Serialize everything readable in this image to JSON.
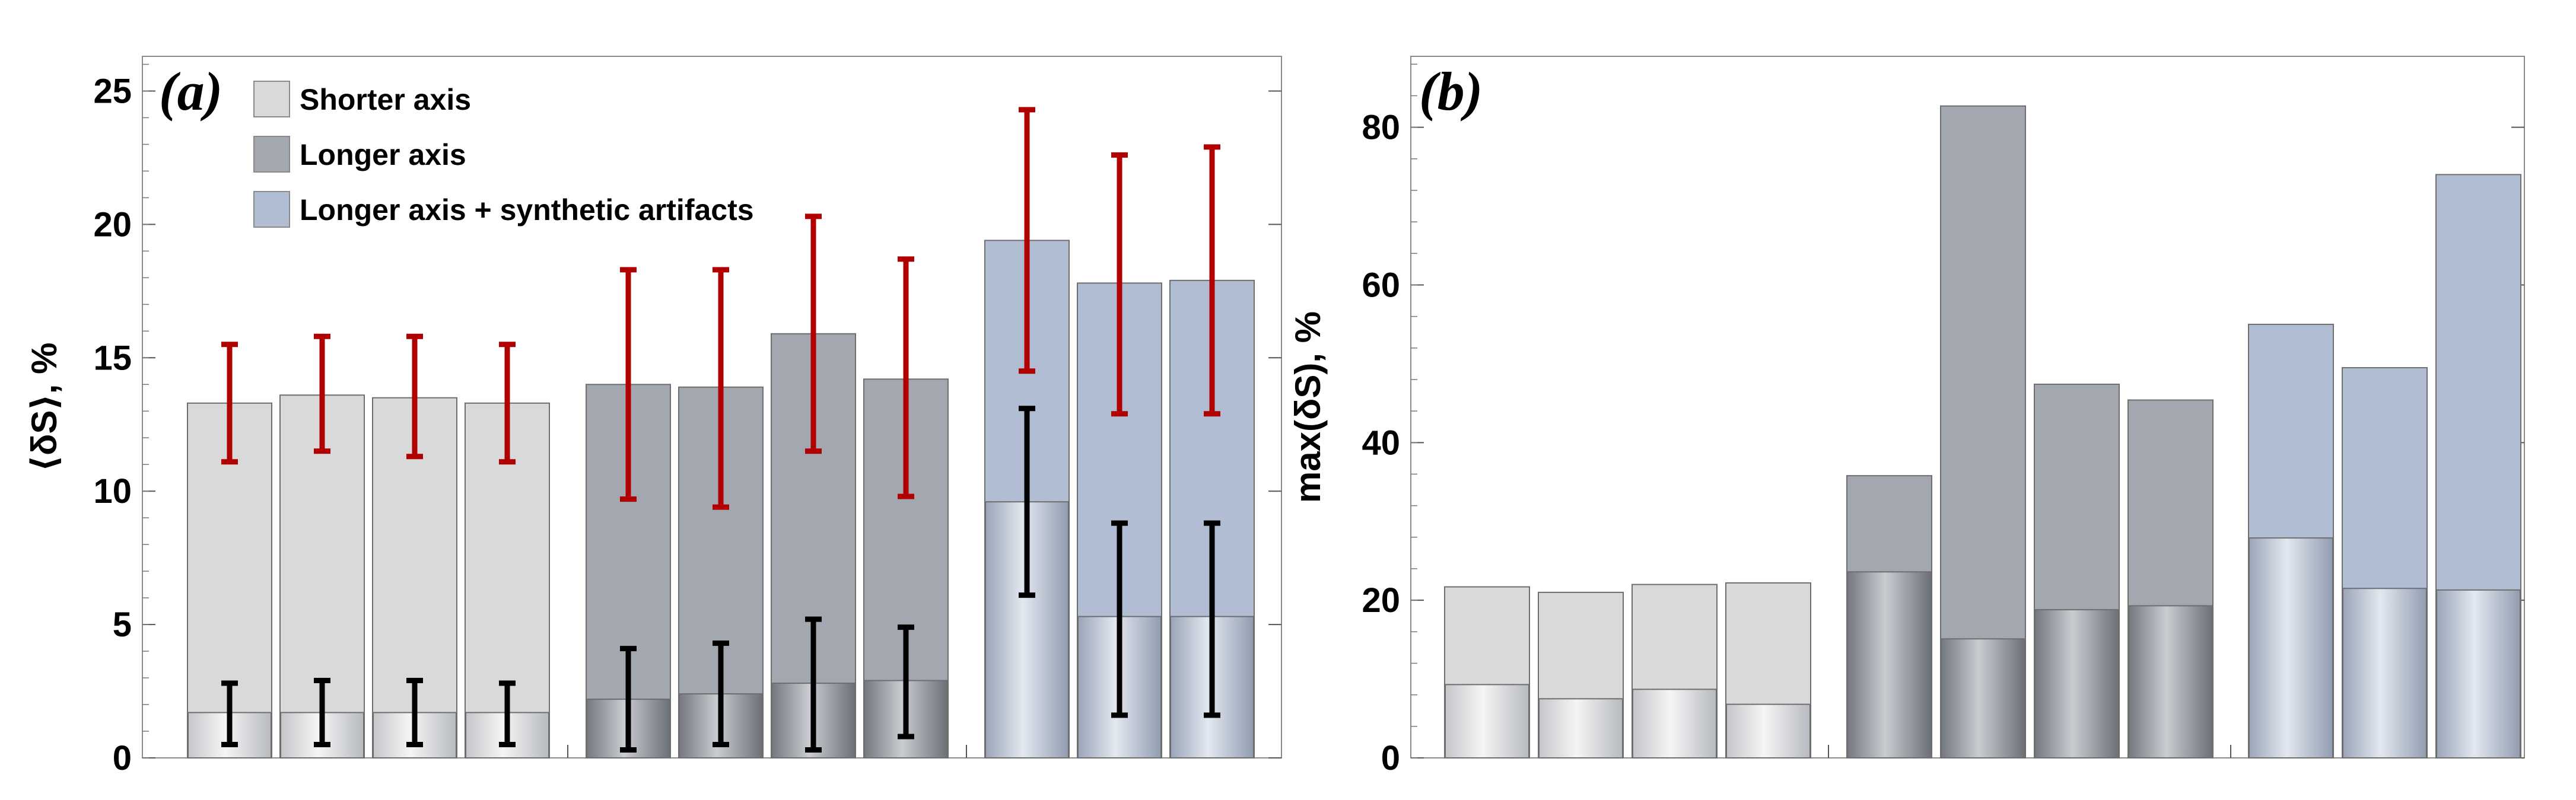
{
  "colors": {
    "shorter": "#d9d9d9",
    "longer": "#a3a7af",
    "synthetic": "#b1bdd3",
    "inner_light": "#d3d6da",
    "inner_mid": "#8f939b",
    "inner_synth": "#b6bfcd",
    "err_outer": "#b00000",
    "err_inner": "#000000",
    "frame": "#8a8a8a"
  },
  "legend": {
    "items": [
      {
        "label": "Shorter axis",
        "color": "#d9d9d9"
      },
      {
        "label": "Longer axis",
        "color": "#a3a7af"
      },
      {
        "label": "Longer axis + synthetic artifacts",
        "color": "#b1bdd3"
      }
    ]
  },
  "chart_data": [
    {
      "type": "bar",
      "panel_label": "(a)",
      "ylabel": "⟨δS⟩, %",
      "ylim": [
        0,
        26.3
      ],
      "yticks": [
        0,
        5,
        10,
        15,
        20,
        25
      ],
      "grid": false,
      "legend_position": "top-left",
      "groups": [
        {
          "name": "Shorter axis",
          "values": [
            13.3,
            13.6,
            13.5,
            13.3
          ],
          "errors": [
            [
              11.1,
              15.5
            ],
            [
              11.5,
              15.8
            ],
            [
              11.3,
              15.8
            ],
            [
              11.1,
              15.5
            ]
          ],
          "inner_values": [
            1.7,
            1.7,
            1.7,
            1.7
          ],
          "inner_errors": [
            [
              0.5,
              2.8
            ],
            [
              0.5,
              2.9
            ],
            [
              0.5,
              2.9
            ],
            [
              0.5,
              2.8
            ]
          ]
        },
        {
          "name": "Longer axis",
          "values": [
            14.0,
            13.9,
            15.9,
            14.2
          ],
          "errors": [
            [
              9.7,
              18.3
            ],
            [
              9.4,
              18.3
            ],
            [
              11.5,
              20.3
            ],
            [
              9.8,
              18.7
            ]
          ],
          "inner_values": [
            2.2,
            2.4,
            2.8,
            2.9
          ],
          "inner_errors": [
            [
              0.3,
              4.1
            ],
            [
              0.5,
              4.3
            ],
            [
              0.3,
              5.2
            ],
            [
              0.8,
              4.9
            ]
          ]
        },
        {
          "name": "Longer axis + synthetic artifacts",
          "values": [
            19.4,
            17.8,
            17.9
          ],
          "errors": [
            [
              14.5,
              24.3
            ],
            [
              12.9,
              22.6
            ],
            [
              12.9,
              22.9
            ]
          ],
          "inner_values": [
            9.6,
            5.3,
            5.3
          ],
          "inner_errors": [
            [
              6.1,
              13.1
            ],
            [
              1.6,
              8.8
            ],
            [
              1.6,
              8.8
            ]
          ]
        }
      ]
    },
    {
      "type": "bar",
      "panel_label": "(b)",
      "ylabel": "max(δS), %",
      "ylim": [
        0,
        89
      ],
      "yticks": [
        0,
        20,
        40,
        60,
        80
      ],
      "grid": false,
      "groups": [
        {
          "name": "Shorter axis",
          "values": [
            21.7,
            21.0,
            22.0,
            22.2
          ],
          "inner_values": [
            9.3,
            7.5,
            8.7,
            6.8
          ]
        },
        {
          "name": "Longer axis",
          "values": [
            35.8,
            82.7,
            47.4,
            45.4
          ],
          "inner_values": [
            23.6,
            15.1,
            18.8,
            19.3
          ]
        },
        {
          "name": "Longer axis + synthetic artifacts",
          "values": [
            55.0,
            49.5,
            74.0
          ],
          "inner_values": [
            27.9,
            21.5,
            21.3
          ]
        }
      ]
    }
  ]
}
